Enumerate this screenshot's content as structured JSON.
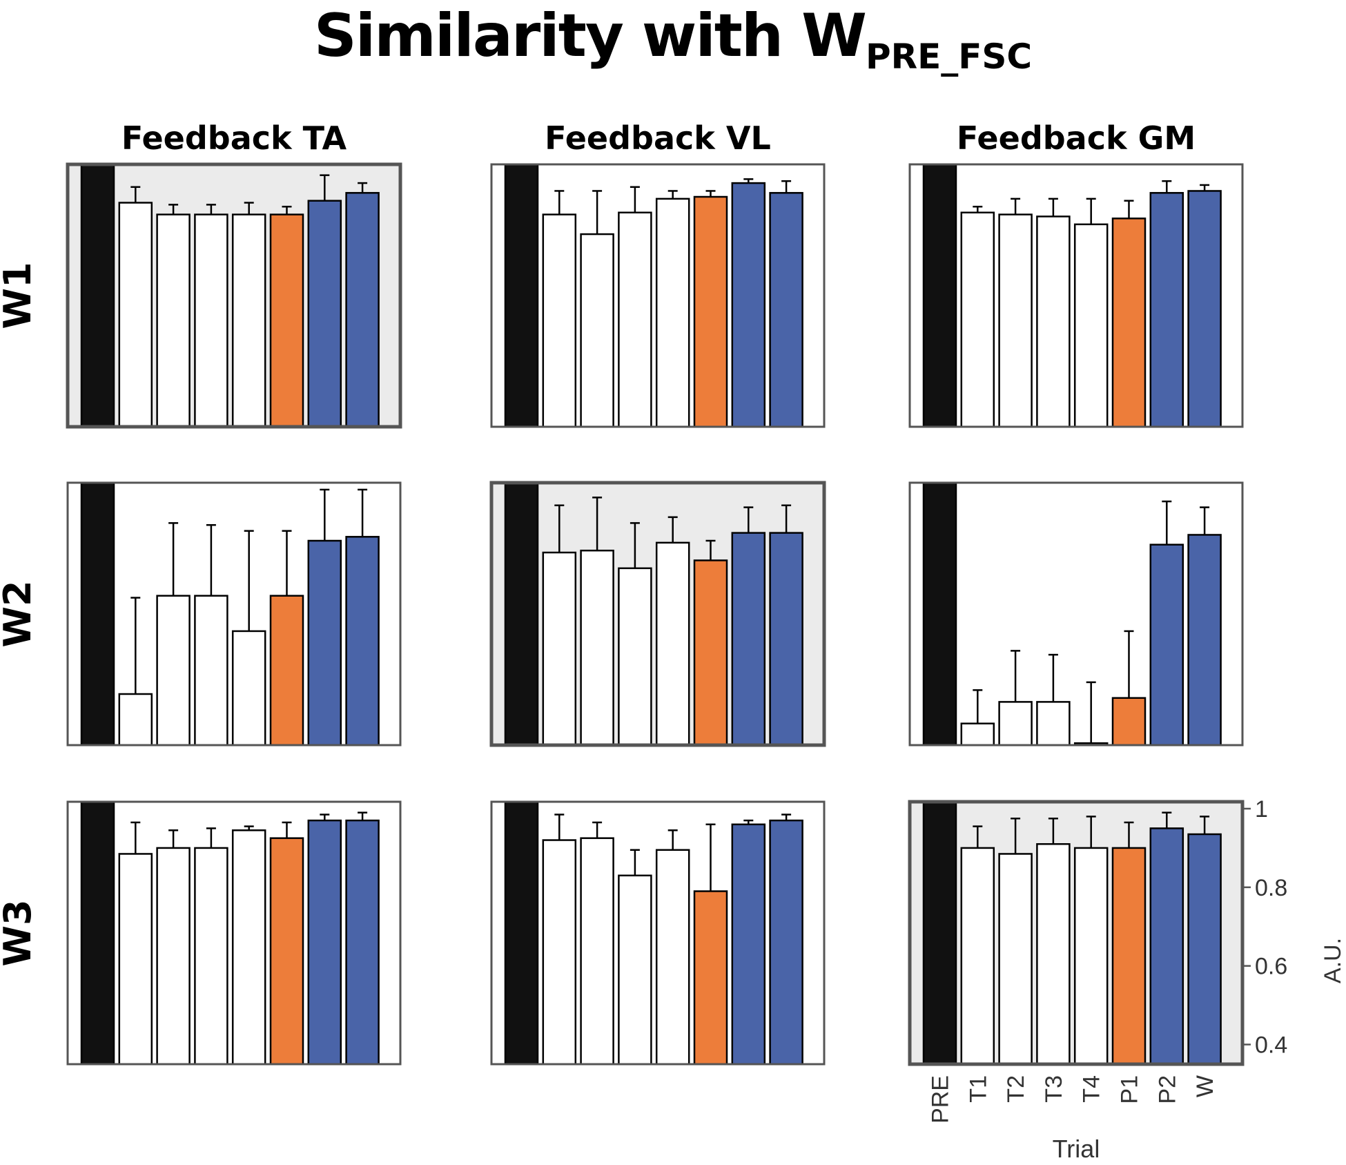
{
  "chart_data": {
    "type": "bar",
    "title_main": "Similarity with W",
    "title_sub": "PRE_FSC",
    "columns": [
      "Feedback TA",
      "Feedback VL",
      "Feedback GM"
    ],
    "rows": [
      "W1",
      "W2",
      "W3"
    ],
    "categories": [
      "PRE",
      "T1",
      "T2",
      "T3",
      "T4",
      "P1",
      "P2",
      "W"
    ],
    "ylim": [
      0.35,
      1.0
    ],
    "yticks": [
      "0.4",
      "0.6",
      "0.8",
      "1"
    ],
    "ylabel": "A.U.",
    "xlabel": "Trial",
    "colors": {
      "pre": "#111111",
      "trial": "#ffffff",
      "p1": "#ED7D3A",
      "post": "#4A64A8",
      "highlight_bg": "#EBEBEB",
      "frame": "#555555"
    },
    "panels": [
      {
        "row": "W1",
        "col": "Feedback TA",
        "highlight": true,
        "values": [
          1.0,
          0.92,
          0.89,
          0.89,
          0.89,
          0.89,
          0.925,
          0.945
        ],
        "errors": [
          0,
          0.04,
          0.025,
          0.025,
          0.03,
          0.02,
          0.065,
          0.025
        ]
      },
      {
        "row": "W1",
        "col": "Feedback VL",
        "highlight": false,
        "values": [
          1.0,
          0.89,
          0.84,
          0.895,
          0.93,
          0.935,
          0.97,
          0.945
        ],
        "errors": [
          0,
          0.06,
          0.11,
          0.065,
          0.02,
          0.015,
          0.01,
          0.03
        ]
      },
      {
        "row": "W1",
        "col": "Feedback GM",
        "highlight": false,
        "values": [
          1.0,
          0.895,
          0.89,
          0.885,
          0.865,
          0.88,
          0.945,
          0.95
        ],
        "errors": [
          0,
          0.015,
          0.04,
          0.045,
          0.065,
          0.045,
          0.03,
          0.015
        ]
      },
      {
        "row": "W2",
        "col": "Feedback TA",
        "highlight": false,
        "values": [
          1.0,
          0.48,
          0.73,
          0.73,
          0.64,
          0.73,
          0.87,
          0.88
        ],
        "errors": [
          0,
          0.245,
          0.185,
          0.18,
          0.255,
          0.165,
          0.135,
          0.12
        ]
      },
      {
        "row": "W2",
        "col": "Feedback VL",
        "highlight": true,
        "values": [
          1.0,
          0.84,
          0.845,
          0.8,
          0.865,
          0.82,
          0.89,
          0.89
        ],
        "errors": [
          0,
          0.12,
          0.135,
          0.115,
          0.065,
          0.05,
          0.065,
          0.07
        ]
      },
      {
        "row": "W2",
        "col": "Feedback GM",
        "highlight": false,
        "values": [
          1.0,
          0.405,
          0.46,
          0.46,
          0.355,
          0.47,
          0.86,
          0.885
        ],
        "errors": [
          0,
          0.085,
          0.13,
          0.12,
          0.155,
          0.17,
          0.11,
          0.07
        ]
      },
      {
        "row": "W3",
        "col": "Feedback TA",
        "highlight": false,
        "values": [
          1.0,
          0.885,
          0.9,
          0.9,
          0.945,
          0.925,
          0.97,
          0.97
        ],
        "errors": [
          0,
          0.08,
          0.045,
          0.05,
          0.01,
          0.04,
          0.015,
          0.02
        ]
      },
      {
        "row": "W3",
        "col": "Feedback VL",
        "highlight": false,
        "values": [
          1.0,
          0.92,
          0.925,
          0.83,
          0.895,
          0.79,
          0.96,
          0.97
        ],
        "errors": [
          0,
          0.065,
          0.04,
          0.065,
          0.05,
          0.17,
          0.01,
          0.015
        ]
      },
      {
        "row": "W3",
        "col": "Feedback GM",
        "highlight": true,
        "values": [
          1.0,
          0.9,
          0.885,
          0.91,
          0.9,
          0.9,
          0.95,
          0.935
        ],
        "errors": [
          0,
          0.055,
          0.09,
          0.065,
          0.08,
          0.065,
          0.04,
          0.045
        ]
      }
    ]
  }
}
